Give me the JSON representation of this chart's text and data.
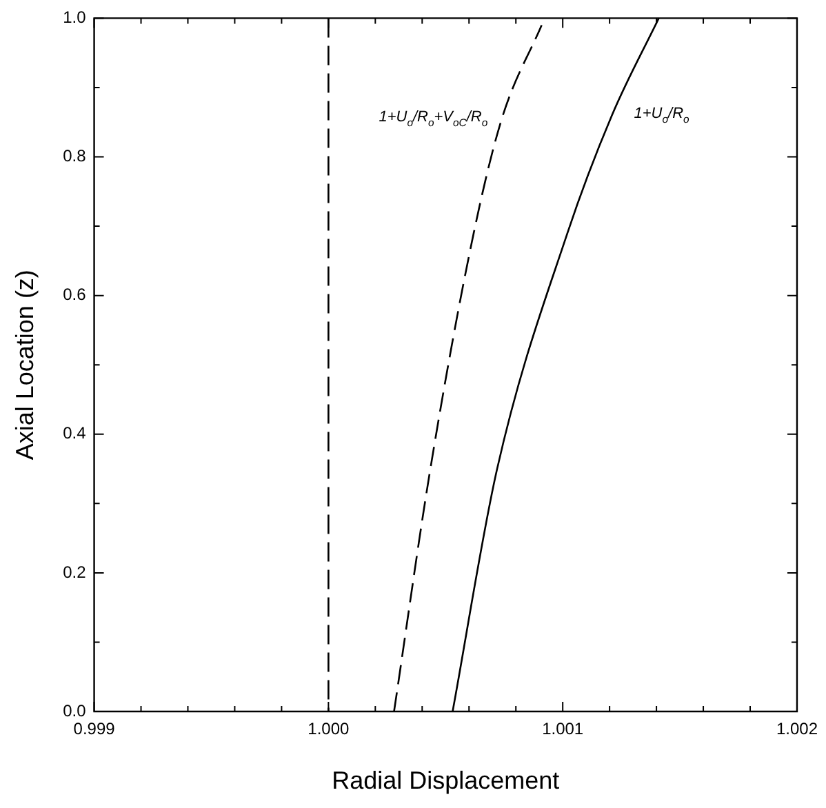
{
  "chart_data": {
    "type": "line",
    "xlabel": "Radial Displacement",
    "ylabel": "Axial Location (z)",
    "xlim": [
      0.999,
      1.002
    ],
    "ylim": [
      0,
      1
    ],
    "xticks": [
      0.999,
      {
        "value": 0.9992,
        "label": null
      },
      {
        "value": 0.9994,
        "label": null
      },
      {
        "value": 0.9996,
        "label": null
      },
      {
        "value": 0.9998,
        "label": null
      },
      "1.000",
      {
        "value": 1.0002,
        "label": null
      },
      {
        "value": 1.0004,
        "label": null
      },
      {
        "value": 1.0006,
        "label": null
      },
      {
        "value": 1.0008,
        "label": null
      },
      1.001,
      {
        "value": 1.0012,
        "label": null
      },
      {
        "value": 1.0014,
        "label": null
      },
      {
        "value": 1.0016,
        "label": null
      },
      {
        "value": 1.0018,
        "label": null
      },
      1.002
    ],
    "yticks": [
      {
        "value": 0,
        "label": "0.0"
      },
      {
        "value": 0.1,
        "label": null
      },
      0.2,
      {
        "value": 0.3,
        "label": null
      },
      0.4,
      {
        "value": 0.5,
        "label": null
      },
      0.6,
      {
        "value": 0.7,
        "label": null
      },
      0.8,
      {
        "value": 0.9,
        "label": null
      },
      {
        "value": 1,
        "label": "1.0"
      }
    ],
    "grid": false,
    "legend": false,
    "marker": "none",
    "ref_lines": [
      {
        "axis": "x",
        "value": 1.0,
        "color": "#000000",
        "line_style": "dashed"
      }
    ],
    "series": [
      {
        "name": "1+U$_{o}$/R$_{o}$+V$_{oC}$/R$_{o}$",
        "color": "#000000",
        "line_style": "dashed",
        "x": [
          1.00028,
          1.000435,
          1.00062,
          1.00074,
          1.00091
        ],
        "values": [
          0,
          0.35,
          0.69,
          0.855,
          0.99
        ]
      },
      {
        "name": "1+U$_{o}$/R$_{o}$",
        "color": "#000000",
        "line_style": "solid",
        "x": [
          1.00053,
          1.00072,
          1.00102,
          1.00121,
          1.00141
        ],
        "values": [
          0,
          0.35,
          0.69,
          0.86,
          1.0
        ]
      }
    ]
  }
}
